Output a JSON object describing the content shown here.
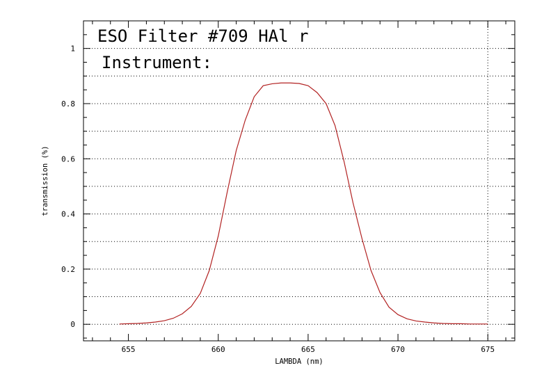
{
  "chart_data": {
    "type": "line",
    "title": "ESO Filter #709 HAl r",
    "subtitle": "Instrument:",
    "xlabel": "LAMBDA (nm)",
    "ylabel": "transmission (%)",
    "xlim": [
      652.5,
      676.5
    ],
    "ylim": [
      -0.06,
      1.1
    ],
    "x_ticks": [
      655,
      660,
      665,
      670,
      675
    ],
    "y_ticks": [
      0,
      0.2,
      0.4,
      0.6,
      0.8,
      1
    ],
    "x_tick_labels": [
      "655",
      "660",
      "665",
      "670",
      "675"
    ],
    "y_tick_labels": [
      "0",
      "0.2",
      "0.4",
      "0.6",
      "0.8",
      "1"
    ],
    "grid": "horizontal dotted every 0.1",
    "line_color": "#b22222",
    "series": [
      {
        "x": [
          654.5,
          655.0,
          655.5,
          656.0,
          656.5,
          657.0,
          657.5,
          658.0,
          658.5,
          659.0,
          659.5,
          660.0,
          660.5,
          661.0,
          661.5,
          662.0,
          662.5,
          663.0,
          663.5,
          664.0,
          664.5,
          665.0,
          665.5,
          666.0,
          666.5,
          667.0,
          667.5,
          668.0,
          668.5,
          669.0,
          669.5,
          670.0,
          670.5,
          671.0,
          671.5,
          672.0,
          672.5,
          673.0,
          673.5,
          674.0,
          674.5,
          675.0
        ],
        "values": [
          0.001,
          0.002,
          0.003,
          0.005,
          0.008,
          0.013,
          0.022,
          0.038,
          0.065,
          0.112,
          0.195,
          0.32,
          0.48,
          0.63,
          0.74,
          0.825,
          0.865,
          0.872,
          0.875,
          0.875,
          0.873,
          0.865,
          0.84,
          0.8,
          0.72,
          0.59,
          0.44,
          0.31,
          0.195,
          0.115,
          0.062,
          0.035,
          0.02,
          0.012,
          0.008,
          0.005,
          0.003,
          0.002,
          0.002,
          0.001,
          0.001,
          0.001
        ]
      }
    ]
  }
}
